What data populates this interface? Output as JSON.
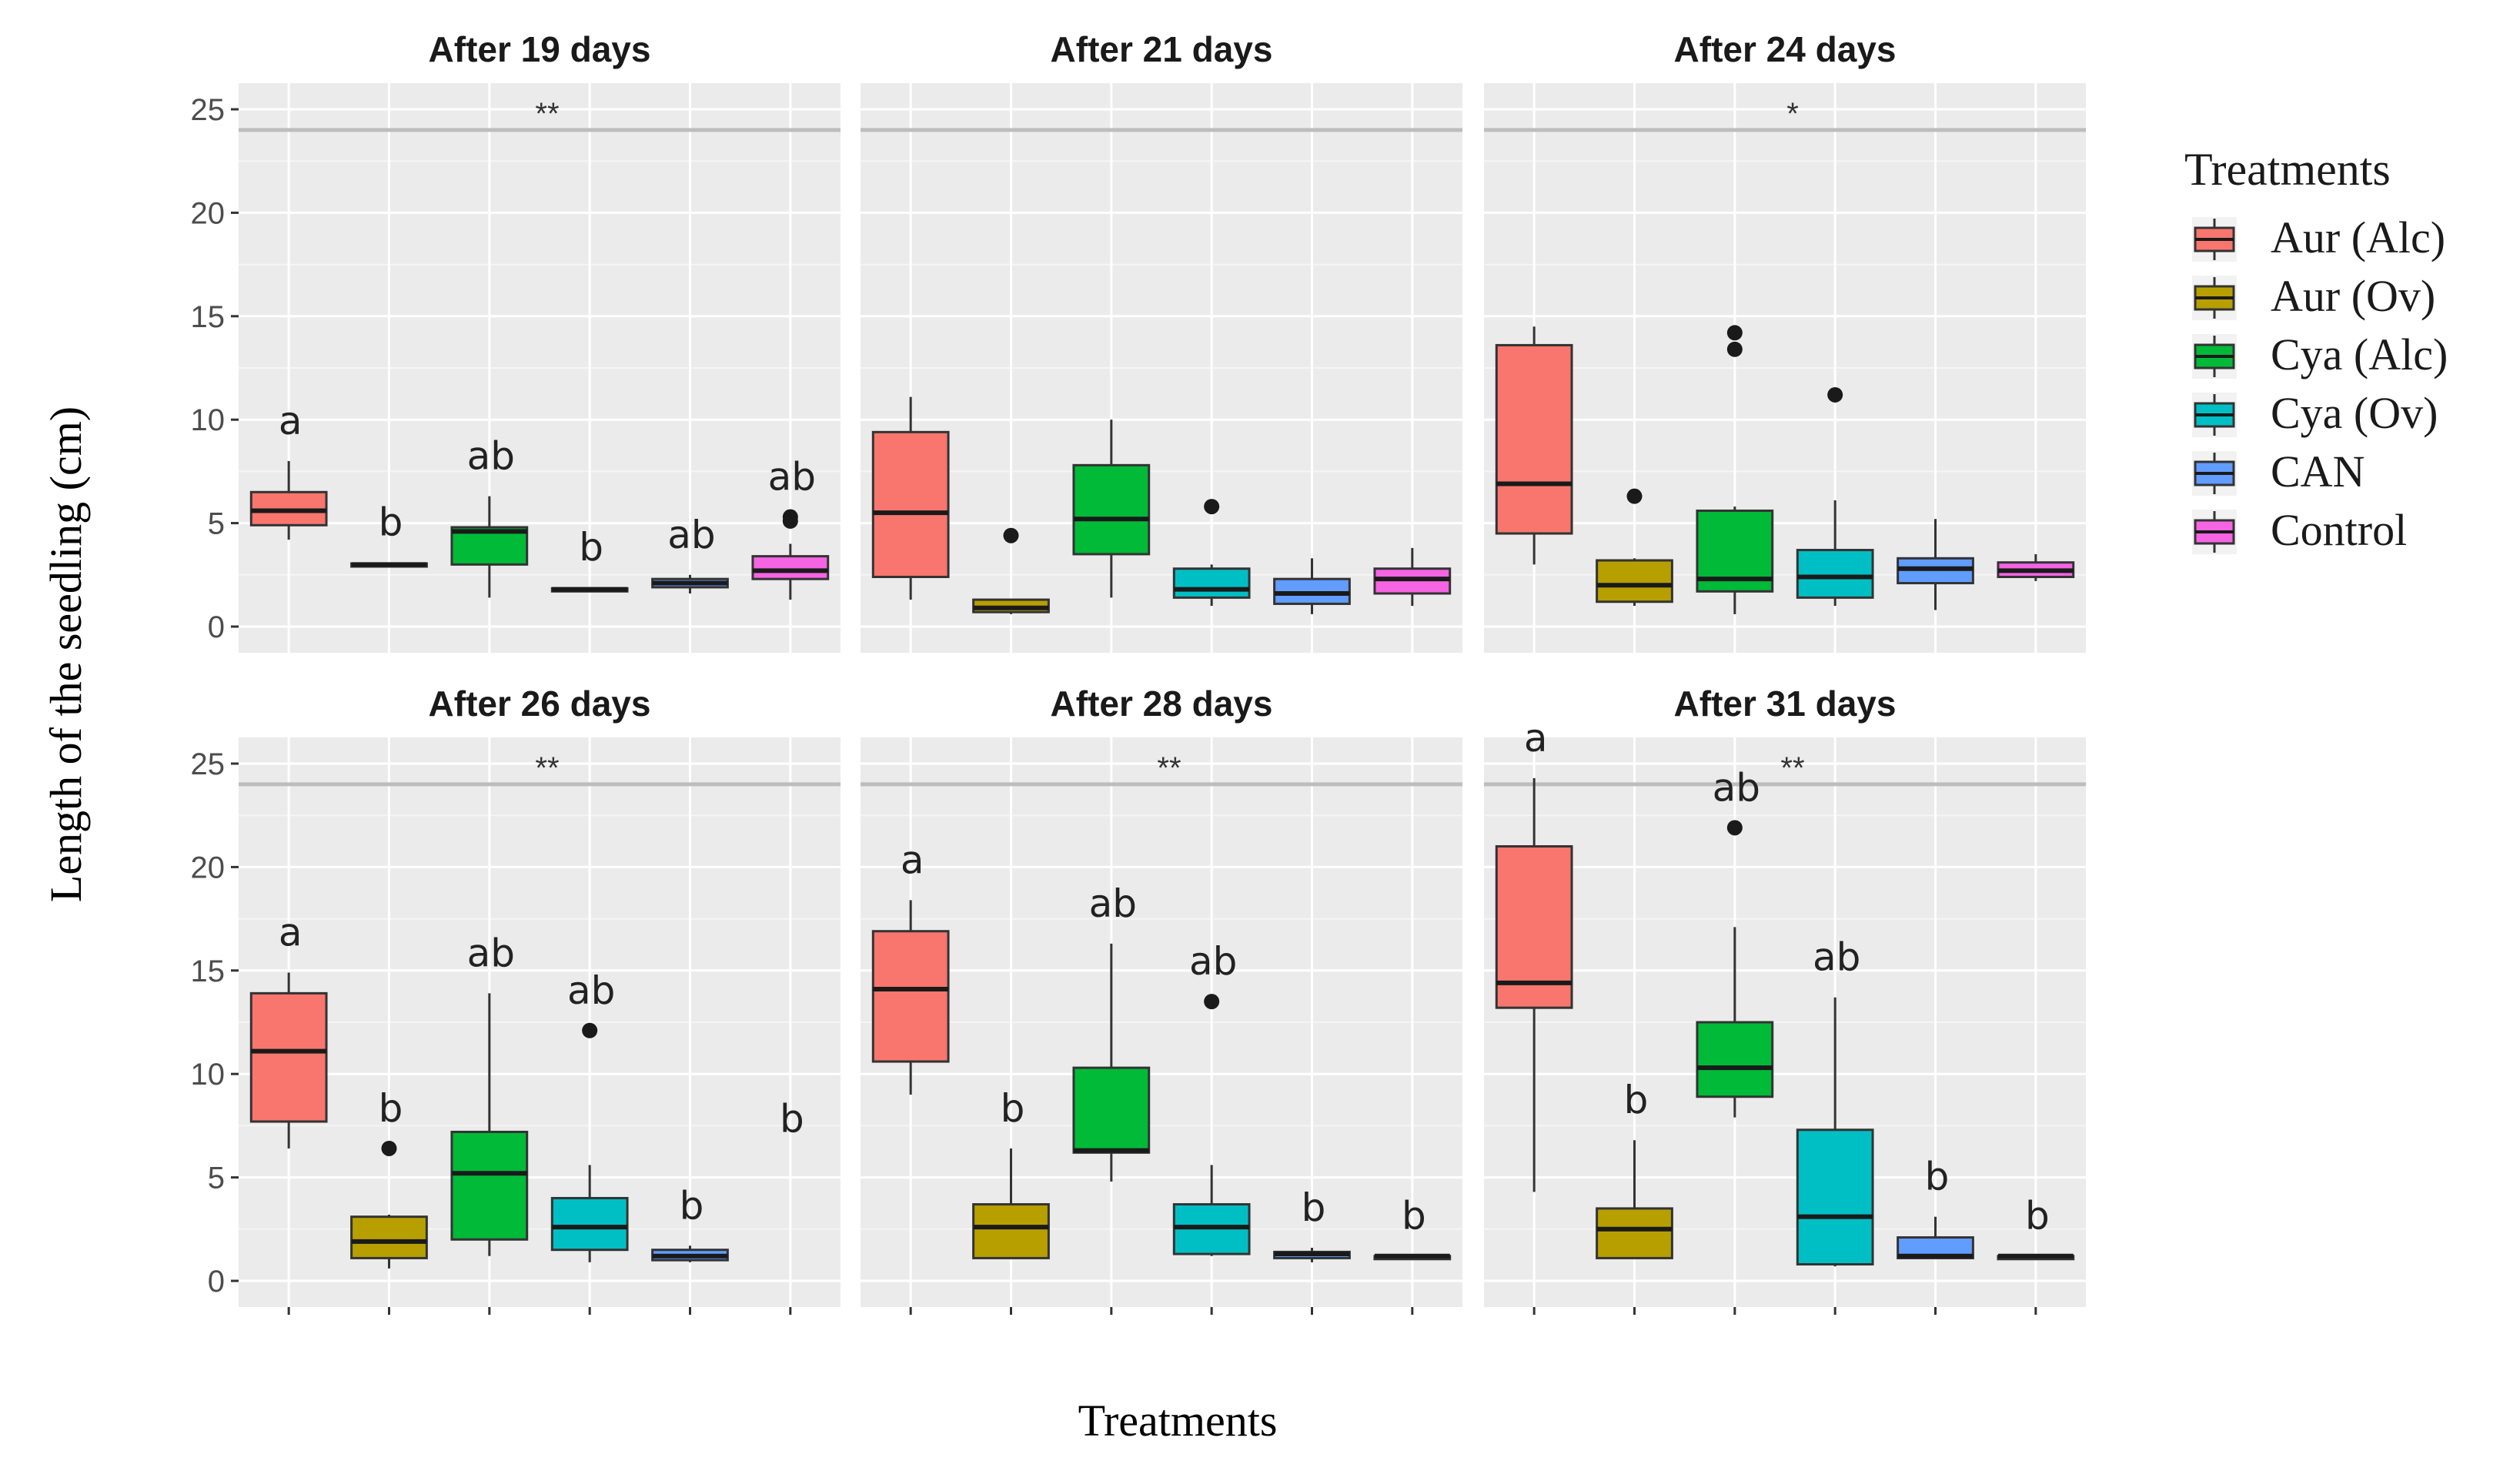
{
  "chart_data": {
    "type": "boxplot",
    "ylabel": "Length of the seedling (cm)",
    "xlabel": "Treatments",
    "ylim": [
      0,
      25
    ],
    "yticks": [
      0,
      5,
      10,
      15,
      20,
      25
    ],
    "reference_line": 24,
    "grid": true,
    "legend": {
      "title": "Treatments",
      "position": "right",
      "entries": [
        {
          "name": "Aur (Alc)",
          "color": "#F8766D"
        },
        {
          "name": "Aur (Ov)",
          "color": "#B79F00"
        },
        {
          "name": "Cya (Alc)",
          "color": "#00BA38"
        },
        {
          "name": "Cya (Ov)",
          "color": "#00BFC4"
        },
        {
          "name": "CAN",
          "color": "#619CFF"
        },
        {
          "name": "Control",
          "color": "#F564E3"
        }
      ]
    },
    "facets": [
      {
        "title": "After 19 days",
        "significance": "**",
        "boxes": [
          {
            "group": "Aur (Alc)",
            "lower": 4.2,
            "q1": 4.9,
            "median": 5.6,
            "q3": 6.5,
            "upper": 8.0,
            "outliers": [],
            "letter": "a"
          },
          {
            "group": "Aur (Ov)",
            "lower": 2.9,
            "q1": 2.95,
            "median": 3.0,
            "q3": 3.05,
            "upper": 3.1,
            "outliers": [],
            "letter": "b"
          },
          {
            "group": "Cya (Alc)",
            "lower": 1.4,
            "q1": 3.0,
            "median": 4.6,
            "q3": 4.8,
            "upper": 6.3,
            "outliers": [],
            "letter": "ab"
          },
          {
            "group": "Cya (Ov)",
            "lower": 1.7,
            "q1": 1.75,
            "median": 1.8,
            "q3": 1.85,
            "upper": 1.9,
            "outliers": [],
            "letter": "b"
          },
          {
            "group": "CAN",
            "lower": 1.6,
            "q1": 1.9,
            "median": 2.1,
            "q3": 2.3,
            "upper": 2.5,
            "outliers": [],
            "letter": "ab"
          },
          {
            "group": "Control",
            "lower": 1.3,
            "q1": 2.3,
            "median": 2.7,
            "q3": 3.4,
            "upper": 4.0,
            "outliers": [
              5.1,
              5.3
            ],
            "letter": "ab"
          }
        ]
      },
      {
        "title": "After 21 days",
        "significance": "",
        "boxes": [
          {
            "group": "Aur (Alc)",
            "lower": 1.3,
            "q1": 2.4,
            "median": 5.5,
            "q3": 9.4,
            "upper": 11.1,
            "outliers": [],
            "letter": ""
          },
          {
            "group": "Aur (Ov)",
            "lower": 0.6,
            "q1": 0.7,
            "median": 0.9,
            "q3": 1.3,
            "upper": 1.3,
            "outliers": [
              4.4
            ],
            "letter": ""
          },
          {
            "group": "Cya (Alc)",
            "lower": 1.4,
            "q1": 3.5,
            "median": 5.2,
            "q3": 7.8,
            "upper": 10.0,
            "outliers": [],
            "letter": ""
          },
          {
            "group": "Cya (Ov)",
            "lower": 1.0,
            "q1": 1.4,
            "median": 1.8,
            "q3": 2.8,
            "upper": 3.0,
            "outliers": [
              5.8
            ],
            "letter": ""
          },
          {
            "group": "CAN",
            "lower": 0.6,
            "q1": 1.1,
            "median": 1.6,
            "q3": 2.3,
            "upper": 3.3,
            "outliers": [],
            "letter": ""
          },
          {
            "group": "Control",
            "lower": 1.0,
            "q1": 1.6,
            "median": 2.3,
            "q3": 2.8,
            "upper": 3.8,
            "outliers": [],
            "letter": ""
          }
        ]
      },
      {
        "title": "After 24 days",
        "significance": "*",
        "boxes": [
          {
            "group": "Aur (Alc)",
            "lower": 3.0,
            "q1": 4.5,
            "median": 6.9,
            "q3": 13.6,
            "upper": 14.5,
            "outliers": [],
            "letter": ""
          },
          {
            "group": "Aur (Ov)",
            "lower": 1.0,
            "q1": 1.2,
            "median": 2.0,
            "q3": 3.2,
            "upper": 3.3,
            "outliers": [
              6.3
            ],
            "letter": ""
          },
          {
            "group": "Cya (Alc)",
            "lower": 0.6,
            "q1": 1.7,
            "median": 2.3,
            "q3": 5.6,
            "upper": 5.8,
            "outliers": [
              13.4,
              14.2
            ],
            "letter": ""
          },
          {
            "group": "Cya (Ov)",
            "lower": 1.0,
            "q1": 1.4,
            "median": 2.4,
            "q3": 3.7,
            "upper": 6.1,
            "outliers": [
              11.2
            ],
            "letter": ""
          },
          {
            "group": "CAN",
            "lower": 0.8,
            "q1": 2.1,
            "median": 2.8,
            "q3": 3.3,
            "upper": 5.2,
            "outliers": [],
            "letter": ""
          },
          {
            "group": "Control",
            "lower": 2.2,
            "q1": 2.4,
            "median": 2.7,
            "q3": 3.1,
            "upper": 3.5,
            "outliers": [],
            "letter": ""
          }
        ]
      },
      {
        "title": "After 26 days",
        "significance": "**",
        "boxes": [
          {
            "group": "Aur (Alc)",
            "lower": 6.4,
            "q1": 7.7,
            "median": 11.1,
            "q3": 13.9,
            "upper": 14.9,
            "outliers": [],
            "letter": "a"
          },
          {
            "group": "Aur (Ov)",
            "lower": 0.6,
            "q1": 1.1,
            "median": 1.9,
            "q3": 3.1,
            "upper": 3.2,
            "outliers": [
              6.4
            ],
            "letter": "b"
          },
          {
            "group": "Cya (Alc)",
            "lower": 1.2,
            "q1": 2.0,
            "median": 5.2,
            "q3": 7.2,
            "upper": 13.9,
            "outliers": [],
            "letter": "ab"
          },
          {
            "group": "Cya (Ov)",
            "lower": 0.9,
            "q1": 1.5,
            "median": 2.6,
            "q3": 4.0,
            "upper": 5.6,
            "outliers": [
              12.1
            ],
            "letter": "ab"
          },
          {
            "group": "CAN",
            "lower": 0.9,
            "q1": 1.0,
            "median": 1.2,
            "q3": 1.5,
            "upper": 1.7,
            "outliers": [],
            "letter": "b"
          },
          {
            "group": "Control",
            "letter": "b"
          }
        ]
      },
      {
        "title": "After 28 days",
        "significance": "**",
        "boxes": [
          {
            "group": "Aur (Alc)",
            "lower": 9.0,
            "q1": 10.6,
            "median": 14.1,
            "q3": 16.9,
            "upper": 18.4,
            "outliers": [],
            "letter": "a"
          },
          {
            "group": "Aur (Ov)",
            "lower": 1.1,
            "q1": 1.1,
            "median": 2.6,
            "q3": 3.7,
            "upper": 6.4,
            "outliers": [],
            "letter": "b"
          },
          {
            "group": "Cya (Alc)",
            "lower": 4.8,
            "q1": 6.2,
            "median": 6.3,
            "q3": 10.3,
            "upper": 16.3,
            "outliers": [],
            "letter": "ab"
          },
          {
            "group": "Cya (Ov)",
            "lower": 1.2,
            "q1": 1.3,
            "median": 2.6,
            "q3": 3.7,
            "upper": 5.6,
            "outliers": [
              13.5
            ],
            "letter": "ab"
          },
          {
            "group": "CAN",
            "lower": 0.9,
            "q1": 1.1,
            "median": 1.3,
            "q3": 1.4,
            "upper": 1.6,
            "outliers": [],
            "letter": "b"
          },
          {
            "group": "Control",
            "lower": 1.1,
            "q1": 1.1,
            "median": 1.2,
            "q3": 1.2,
            "upper": 1.2,
            "outliers": [],
            "letter": "b"
          }
        ]
      },
      {
        "title": "After 31 days",
        "significance": "**",
        "boxes": [
          {
            "group": "Aur (Alc)",
            "lower": 4.3,
            "q1": 13.2,
            "median": 14.4,
            "q3": 21.0,
            "upper": 24.3,
            "outliers": [],
            "letter": "a"
          },
          {
            "group": "Aur (Ov)",
            "lower": 1.1,
            "q1": 1.1,
            "median": 2.5,
            "q3": 3.5,
            "upper": 6.8,
            "outliers": [],
            "letter": "b"
          },
          {
            "group": "Cya (Alc)",
            "lower": 7.9,
            "q1": 8.9,
            "median": 10.3,
            "q3": 12.5,
            "upper": 17.1,
            "outliers": [
              21.9
            ],
            "letter": "ab"
          },
          {
            "group": "Cya (Ov)",
            "lower": 0.7,
            "q1": 0.8,
            "median": 3.1,
            "q3": 7.3,
            "upper": 13.7,
            "outliers": [],
            "letter": "ab"
          },
          {
            "group": "CAN",
            "lower": 1.1,
            "q1": 1.1,
            "median": 1.2,
            "q3": 2.1,
            "upper": 3.1,
            "outliers": [],
            "letter": "b"
          },
          {
            "group": "Control",
            "lower": 1.1,
            "q1": 1.1,
            "median": 1.2,
            "q3": 1.2,
            "upper": 1.2,
            "outliers": [],
            "letter": "b"
          }
        ]
      }
    ]
  }
}
